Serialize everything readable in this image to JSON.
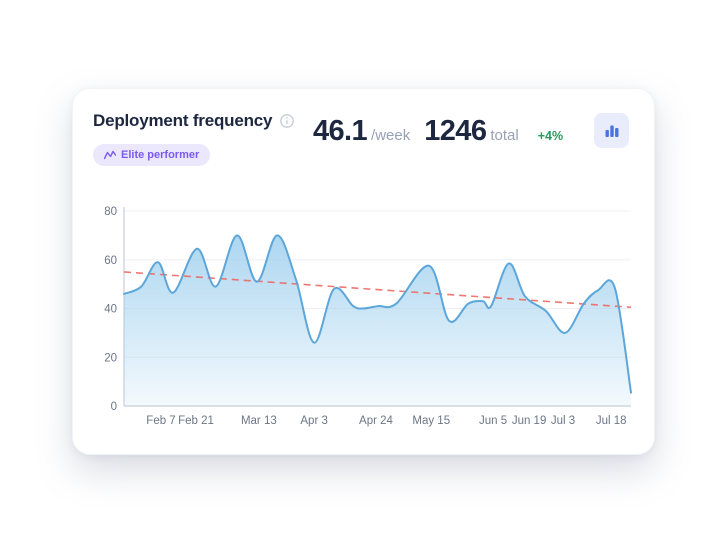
{
  "card": {
    "title": "Deployment frequency",
    "badge": {
      "label": "Elite performer",
      "icon": "trend-pulse-icon",
      "bg_color": "#ebe7fc",
      "text_color": "#7a5af0"
    },
    "stats": {
      "rate_value": "46.1",
      "rate_unit": "/week",
      "total_value": "1246",
      "total_unit": "total",
      "delta": "+4%",
      "delta_color": "#279b5c"
    },
    "header_icons": {
      "title_info": "info-circle-icon",
      "action": "bar-chart-icon",
      "action_bg": "#e9edfb",
      "action_bar_color": "#4a72e0"
    }
  },
  "chart_data": {
    "type": "area",
    "title": "Deployment frequency over time (weekly)",
    "xlabel": "",
    "ylabel": "",
    "ylim": [
      0,
      80
    ],
    "yticks": [
      0,
      20,
      40,
      60,
      80
    ],
    "grid": true,
    "x_labels": [
      {
        "label": "Feb 7",
        "pos": 0.073
      },
      {
        "label": "Feb 21",
        "pos": 0.142
      },
      {
        "label": "Mar 13",
        "pos": 0.266
      },
      {
        "label": "Apr 3",
        "pos": 0.375
      },
      {
        "label": "Apr 24",
        "pos": 0.497
      },
      {
        "label": "May 15",
        "pos": 0.606
      },
      {
        "label": "Jun 5",
        "pos": 0.728
      },
      {
        "label": "Jun 19",
        "pos": 0.799
      },
      {
        "label": "Jul 3",
        "pos": 0.866
      },
      {
        "label": "Jul 18",
        "pos": 0.961
      }
    ],
    "points": [
      [
        0.0,
        46
      ],
      [
        0.034,
        49
      ],
      [
        0.067,
        59
      ],
      [
        0.097,
        46.5
      ],
      [
        0.144,
        64.5
      ],
      [
        0.181,
        49
      ],
      [
        0.223,
        70
      ],
      [
        0.262,
        51
      ],
      [
        0.302,
        70
      ],
      [
        0.339,
        52
      ],
      [
        0.375,
        26
      ],
      [
        0.414,
        48
      ],
      [
        0.452,
        41
      ],
      [
        0.471,
        40
      ],
      [
        0.501,
        41
      ],
      [
        0.537,
        42
      ],
      [
        0.602,
        57.5
      ],
      [
        0.641,
        35
      ],
      [
        0.679,
        42
      ],
      [
        0.708,
        43
      ],
      [
        0.724,
        41
      ],
      [
        0.759,
        58.5
      ],
      [
        0.791,
        45
      ],
      [
        0.832,
        39
      ],
      [
        0.87,
        30
      ],
      [
        0.907,
        42
      ],
      [
        0.935,
        47.5
      ],
      [
        0.968,
        48.5
      ],
      [
        1.0,
        5.5
      ]
    ],
    "trend": {
      "style": "dashed",
      "start": 55,
      "end": 40.5
    },
    "colors": {
      "line": "#5ca6da",
      "fill": "#9ecfee",
      "trend": "#ec6b63",
      "grid": "#eef0f5",
      "axis": "#c9ced8",
      "tick_text": "#6c7686"
    }
  }
}
